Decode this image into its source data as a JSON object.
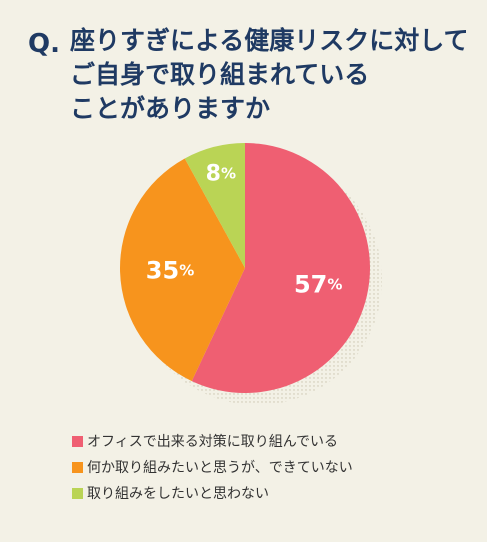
{
  "question": {
    "mark": "Q.",
    "lines": [
      "座りすぎによる健康リスクに対して",
      "ご自身で取り組まれている",
      "ことがありますか"
    ]
  },
  "chart_data": {
    "type": "pie",
    "title": "座りすぎによる健康リスクに対してご自身で取り組まれていることがありますか",
    "unit": "%",
    "slices": [
      {
        "label": "オフィスで出来る対策に取り組んでいる",
        "value": 57,
        "color": "#ef5f72"
      },
      {
        "label": "何か取り組みたいと思うが、できていない",
        "value": 35,
        "color": "#f7941d"
      },
      {
        "label": "取り組みをしたいと思わない",
        "value": 8,
        "color": "#bad455"
      }
    ],
    "start": "top",
    "direction": "clockwise",
    "legend_position": "bottom"
  }
}
